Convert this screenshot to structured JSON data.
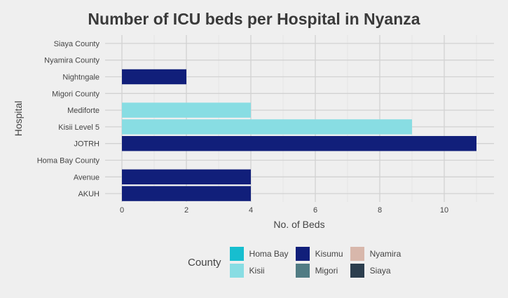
{
  "chart_data": {
    "type": "bar",
    "orientation": "horizontal",
    "title": "Number of ICU beds per Hospital in Nyanza",
    "xlabel": "No. of Beds",
    "ylabel": "Hospital",
    "xlim": [
      0,
      11
    ],
    "xticks": [
      0,
      2,
      4,
      6,
      8,
      10
    ],
    "grid": true,
    "legend_position": "bottom",
    "categories": [
      "Siaya County",
      "Nyamira County",
      "Nightngale",
      "Migori County",
      "Mediforte",
      "Kisii Level 5",
      "JOTRH",
      "Homa Bay County",
      "Avenue",
      "AKUH"
    ],
    "values": [
      0,
      0,
      2,
      0,
      4,
      9,
      11,
      0,
      4,
      4
    ],
    "county": [
      "Siaya",
      "Nyamira",
      "Kisumu",
      "Migori",
      "Kisii",
      "Kisii",
      "Kisumu",
      "Homa Bay",
      "Kisumu",
      "Kisumu"
    ],
    "legend": {
      "title": "County",
      "entries": [
        {
          "name": "Homa Bay",
          "color": "#17becf"
        },
        {
          "name": "Kisumu",
          "color": "#111f7a"
        },
        {
          "name": "Nyamira",
          "color": "#d8b7ab"
        },
        {
          "name": "Kisii",
          "color": "#88dde3"
        },
        {
          "name": "Migori",
          "color": "#517c84"
        },
        {
          "name": "Siaya",
          "color": "#2c3e4e"
        }
      ]
    }
  }
}
